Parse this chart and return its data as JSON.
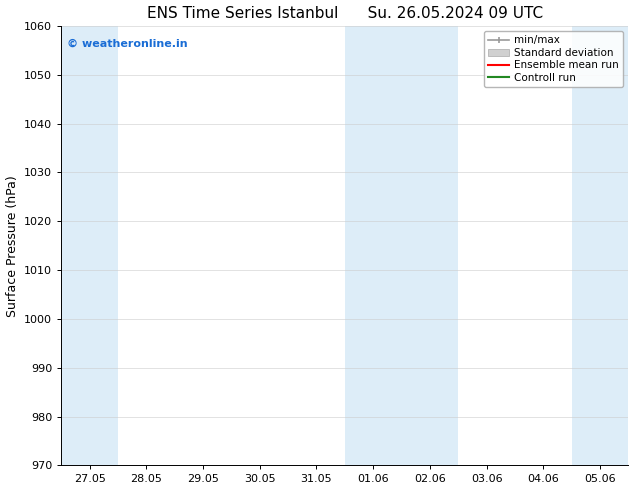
{
  "title": "ENS Time Series Istanbul      Su. 26.05.2024 09 UTC",
  "ylabel": "Surface Pressure (hPa)",
  "ylim": [
    970,
    1060
  ],
  "yticks": [
    970,
    980,
    990,
    1000,
    1010,
    1020,
    1030,
    1040,
    1050,
    1060
  ],
  "xtick_labels": [
    "27.05",
    "28.05",
    "29.05",
    "30.05",
    "31.05",
    "01.06",
    "02.06",
    "03.06",
    "04.06",
    "05.06"
  ],
  "bg_color": "#ffffff",
  "plot_bg_color": "#ffffff",
  "shaded_color": "#ddedf8",
  "watermark_text": "© weatheronline.in",
  "watermark_color": "#1a6dd5",
  "legend_entries": [
    {
      "label": "min/max",
      "color": "#aaaaaa",
      "style": "errorbar"
    },
    {
      "label": "Standard deviation",
      "color": "#cccccc",
      "style": "rect"
    },
    {
      "label": "Ensemble mean run",
      "color": "#ff0000",
      "style": "line"
    },
    {
      "label": "Controll run",
      "color": "#228822",
      "style": "line"
    }
  ],
  "title_fontsize": 11,
  "axis_label_fontsize": 9,
  "tick_fontsize": 8,
  "legend_fontsize": 7.5
}
